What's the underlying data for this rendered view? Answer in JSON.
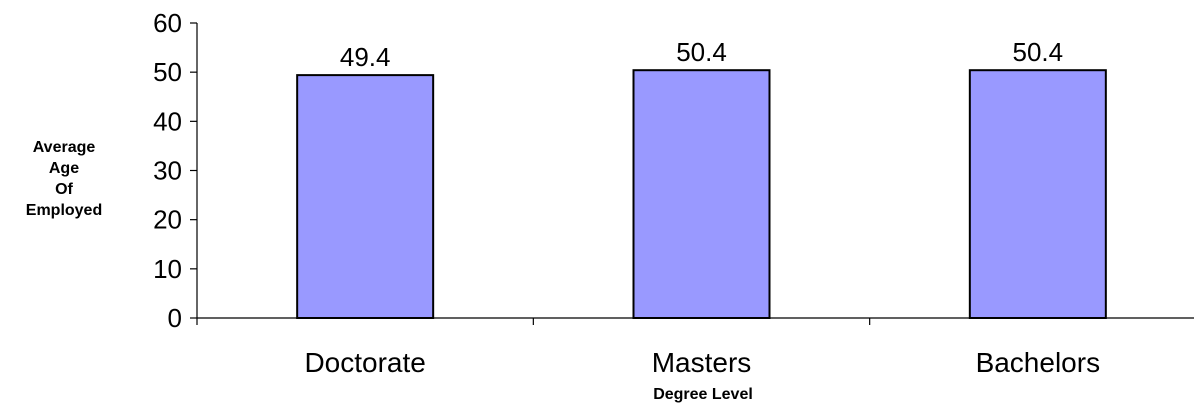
{
  "chart_data": {
    "type": "bar",
    "categories": [
      "Doctorate",
      "Masters",
      "Bachelors"
    ],
    "values": [
      49.4,
      50.4,
      50.4
    ],
    "data_labels": [
      "49.4",
      "50.4",
      "50.4"
    ],
    "xlabel": "Degree Level",
    "ylabel_lines": [
      "Average",
      "Age",
      "Of",
      "Employed"
    ],
    "ylim": [
      0,
      60
    ],
    "yticks": [
      0,
      10,
      20,
      30,
      40,
      50,
      60
    ],
    "bar_color": "#9999ff",
    "bar_border_color": "#000000",
    "grid": false,
    "legend": "none"
  }
}
